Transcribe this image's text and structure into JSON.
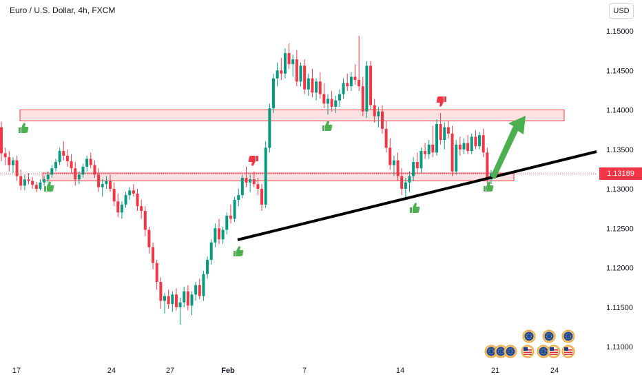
{
  "header": {
    "title": "Euro / U.S. Dollar, 4h, FXCM",
    "currency": "USD"
  },
  "chart_data": {
    "type": "candlestick",
    "y_axis": {
      "ticks": [
        "1.15000",
        "1.14500",
        "1.14000",
        "1.13500",
        "1.13000",
        "1.12500",
        "1.12000",
        "1.11500",
        "1.11000"
      ],
      "range": [
        1.1075,
        1.1525
      ]
    },
    "x_axis": {
      "ticks": [
        "17",
        "24",
        "27",
        "Feb",
        "7",
        "14",
        "21",
        "24"
      ]
    },
    "current_price": "1.13189",
    "colors": {
      "up": "#089981",
      "down": "#f23645",
      "zone": "#f23645",
      "trendline": "#000000",
      "arrow": "#4caf50",
      "thumb_up": "#4caf50",
      "thumb_down": "#f23645"
    },
    "annotations": {
      "resistance_zone": [
        1.1386,
        1.14
      ],
      "support_zone": [
        1.131,
        1.132
      ],
      "trendline": [
        {
          "x": "Feb",
          "y": 1.1235
        },
        {
          "x": "24",
          "y": 1.1348
        }
      ],
      "arrow": {
        "from": 1.1315,
        "to": 1.139
      },
      "thumbs_up": 6,
      "thumbs_down": 2
    },
    "candles_ohlc": [
      [
        1.1378,
        1.1385,
        1.1335,
        1.1345
      ],
      [
        1.1345,
        1.1352,
        1.133,
        1.134
      ],
      [
        1.134,
        1.1348,
        1.1322,
        1.133
      ],
      [
        1.133,
        1.134,
        1.132,
        1.1336
      ],
      [
        1.1336,
        1.1342,
        1.131,
        1.1316
      ],
      [
        1.1316,
        1.1324,
        1.1298,
        1.1304
      ],
      [
        1.1304,
        1.1318,
        1.1298,
        1.1312
      ],
      [
        1.1312,
        1.132,
        1.1306,
        1.131
      ],
      [
        1.131,
        1.1315,
        1.13,
        1.1305
      ],
      [
        1.1305,
        1.1309,
        1.1296,
        1.13
      ],
      [
        1.13,
        1.1312,
        1.1298,
        1.1308
      ],
      [
        1.1308,
        1.1316,
        1.1304,
        1.1312
      ],
      [
        1.1312,
        1.1322,
        1.1308,
        1.1318
      ],
      [
        1.1318,
        1.133,
        1.1314,
        1.1326
      ],
      [
        1.1326,
        1.1338,
        1.1322,
        1.1334
      ],
      [
        1.1334,
        1.1352,
        1.133,
        1.1348
      ],
      [
        1.1348,
        1.136,
        1.1336,
        1.1342
      ],
      [
        1.1342,
        1.135,
        1.1328,
        1.1335
      ],
      [
        1.1335,
        1.1344,
        1.132,
        1.1326
      ],
      [
        1.1326,
        1.1334,
        1.1304,
        1.1312
      ],
      [
        1.1312,
        1.1322,
        1.1306,
        1.1318
      ],
      [
        1.1318,
        1.1332,
        1.1314,
        1.1328
      ],
      [
        1.1328,
        1.1342,
        1.1322,
        1.1338
      ],
      [
        1.1338,
        1.1346,
        1.1326,
        1.133
      ],
      [
        1.133,
        1.1336,
        1.1314,
        1.1318
      ],
      [
        1.1318,
        1.1326,
        1.1296,
        1.1302
      ],
      [
        1.1302,
        1.1312,
        1.129,
        1.1306
      ],
      [
        1.1306,
        1.1316,
        1.13,
        1.131
      ],
      [
        1.131,
        1.1318,
        1.1296,
        1.13
      ],
      [
        1.13,
        1.1308,
        1.1278,
        1.1284
      ],
      [
        1.1284,
        1.1294,
        1.1264,
        1.127
      ],
      [
        1.127,
        1.1284,
        1.1262,
        1.128
      ],
      [
        1.128,
        1.1296,
        1.1276,
        1.1292
      ],
      [
        1.1292,
        1.1302,
        1.1286,
        1.1298
      ],
      [
        1.1298,
        1.1306,
        1.129,
        1.1294
      ],
      [
        1.1294,
        1.13,
        1.1272,
        1.1278
      ],
      [
        1.1278,
        1.1286,
        1.1262,
        1.1272
      ],
      [
        1.1272,
        1.1278,
        1.124,
        1.1248
      ],
      [
        1.1248,
        1.1252,
        1.1218,
        1.1226
      ],
      [
        1.1226,
        1.1232,
        1.1198,
        1.1206
      ],
      [
        1.1206,
        1.121,
        1.1172,
        1.1182
      ],
      [
        1.1182,
        1.1188,
        1.1148,
        1.1158
      ],
      [
        1.1158,
        1.1168,
        1.1142,
        1.1164
      ],
      [
        1.1164,
        1.1172,
        1.1148,
        1.1154
      ],
      [
        1.1154,
        1.117,
        1.1144,
        1.1166
      ],
      [
        1.1166,
        1.1174,
        1.1146,
        1.115
      ],
      [
        1.115,
        1.1162,
        1.1128,
        1.1156
      ],
      [
        1.1156,
        1.1176,
        1.115,
        1.117
      ],
      [
        1.117,
        1.1178,
        1.1146,
        1.1152
      ],
      [
        1.1152,
        1.117,
        1.114,
        1.1166
      ],
      [
        1.1166,
        1.1182,
        1.1158,
        1.1178
      ],
      [
        1.1178,
        1.1186,
        1.116,
        1.1164
      ],
      [
        1.1164,
        1.1196,
        1.1158,
        1.1192
      ],
      [
        1.1192,
        1.1214,
        1.1186,
        1.121
      ],
      [
        1.121,
        1.1236,
        1.1204,
        1.1232
      ],
      [
        1.1232,
        1.1256,
        1.1226,
        1.125
      ],
      [
        1.125,
        1.1262,
        1.123,
        1.1236
      ],
      [
        1.1236,
        1.1252,
        1.123,
        1.1248
      ],
      [
        1.1248,
        1.127,
        1.1242,
        1.1266
      ],
      [
        1.1266,
        1.128,
        1.1256,
        1.1262
      ],
      [
        1.1262,
        1.129,
        1.1258,
        1.1286
      ],
      [
        1.1286,
        1.13,
        1.1278,
        1.1292
      ],
      [
        1.1292,
        1.1318,
        1.1288,
        1.1314
      ],
      [
        1.1314,
        1.1328,
        1.1302,
        1.1308
      ],
      [
        1.1308,
        1.1318,
        1.1296,
        1.1312
      ],
      [
        1.1312,
        1.1322,
        1.1302,
        1.1306
      ],
      [
        1.1306,
        1.1314,
        1.1292,
        1.13
      ],
      [
        1.13,
        1.1306,
        1.1272,
        1.128
      ],
      [
        1.128,
        1.136,
        1.1276,
        1.1352
      ],
      [
        1.1352,
        1.1408,
        1.1346,
        1.1402
      ],
      [
        1.1402,
        1.1446,
        1.1396,
        1.144
      ],
      [
        1.144,
        1.146,
        1.143,
        1.145
      ],
      [
        1.145,
        1.1466,
        1.1438,
        1.1446
      ],
      [
        1.1446,
        1.1478,
        1.144,
        1.1472
      ],
      [
        1.1472,
        1.1484,
        1.1452,
        1.1458
      ],
      [
        1.1458,
        1.147,
        1.1442,
        1.1464
      ],
      [
        1.1464,
        1.1476,
        1.143,
        1.1436
      ],
      [
        1.1436,
        1.146,
        1.143,
        1.1456
      ],
      [
        1.1456,
        1.1464,
        1.142,
        1.1426
      ],
      [
        1.1426,
        1.1446,
        1.1418,
        1.144
      ],
      [
        1.144,
        1.1452,
        1.1416,
        1.1422
      ],
      [
        1.1422,
        1.144,
        1.1412,
        1.1436
      ],
      [
        1.1436,
        1.1448,
        1.1414,
        1.142
      ],
      [
        1.142,
        1.1434,
        1.1402,
        1.1408
      ],
      [
        1.1408,
        1.142,
        1.1394,
        1.1414
      ],
      [
        1.1414,
        1.1424,
        1.1398,
        1.1404
      ],
      [
        1.1404,
        1.1418,
        1.1396,
        1.1412
      ],
      [
        1.1412,
        1.1426,
        1.1404,
        1.142
      ],
      [
        1.142,
        1.144,
        1.1414,
        1.1434
      ],
      [
        1.1434,
        1.1446,
        1.1424,
        1.143
      ],
      [
        1.143,
        1.1448,
        1.1424,
        1.1442
      ],
      [
        1.1442,
        1.1458,
        1.1432,
        1.1438
      ],
      [
        1.1438,
        1.1494,
        1.1424,
        1.143
      ],
      [
        1.143,
        1.1442,
        1.1392,
        1.1398
      ],
      [
        1.1398,
        1.1462,
        1.139,
        1.1456
      ],
      [
        1.1456,
        1.1462,
        1.14,
        1.1406
      ],
      [
        1.1406,
        1.1414,
        1.1384,
        1.1392
      ],
      [
        1.1392,
        1.1404,
        1.1378,
        1.1398
      ],
      [
        1.1398,
        1.1406,
        1.137,
        1.1376
      ],
      [
        1.1376,
        1.1386,
        1.1346,
        1.1352
      ],
      [
        1.1352,
        1.1364,
        1.1324,
        1.133
      ],
      [
        1.133,
        1.1342,
        1.1316,
        1.1336
      ],
      [
        1.1336,
        1.1346,
        1.131,
        1.1316
      ],
      [
        1.1316,
        1.1326,
        1.1292,
        1.13
      ],
      [
        1.13,
        1.1314,
        1.1286,
        1.1308
      ],
      [
        1.1308,
        1.1322,
        1.1296,
        1.1316
      ],
      [
        1.1316,
        1.134,
        1.131,
        1.1334
      ],
      [
        1.1334,
        1.1346,
        1.132,
        1.1326
      ],
      [
        1.1326,
        1.1352,
        1.132,
        1.1348
      ],
      [
        1.1348,
        1.1358,
        1.1338,
        1.1344
      ],
      [
        1.1344,
        1.1362,
        1.1338,
        1.1356
      ],
      [
        1.1356,
        1.138,
        1.134,
        1.1346
      ],
      [
        1.1346,
        1.1388,
        1.1342,
        1.1382
      ],
      [
        1.1382,
        1.1396,
        1.1356,
        1.1362
      ],
      [
        1.1362,
        1.1384,
        1.135,
        1.1378
      ],
      [
        1.1378,
        1.1386,
        1.1364,
        1.137
      ],
      [
        1.137,
        1.138,
        1.1316,
        1.1322
      ],
      [
        1.1322,
        1.1362,
        1.1318,
        1.1356
      ],
      [
        1.1356,
        1.1366,
        1.1342,
        1.135
      ],
      [
        1.135,
        1.1364,
        1.1344,
        1.1358
      ],
      [
        1.1358,
        1.1368,
        1.1344,
        1.1348
      ],
      [
        1.1348,
        1.137,
        1.1344,
        1.1366
      ],
      [
        1.1366,
        1.1374,
        1.135,
        1.1354
      ],
      [
        1.1354,
        1.1372,
        1.135,
        1.1368
      ],
      [
        1.1368,
        1.1376,
        1.134,
        1.1346
      ],
      [
        1.1346,
        1.1352,
        1.1306,
        1.1312
      ],
      [
        1.1312,
        1.1324,
        1.1306,
        1.1319
      ]
    ]
  }
}
